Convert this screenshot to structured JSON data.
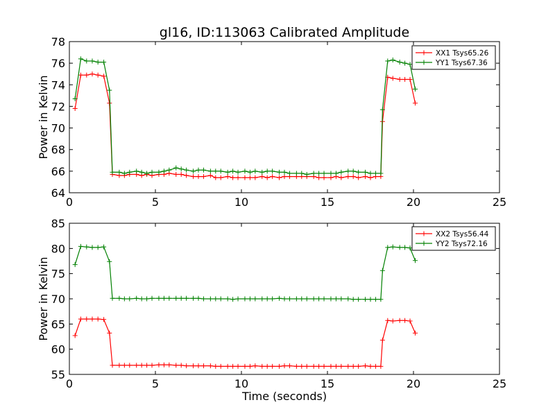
{
  "figure": {
    "title": "gl16, ID:113063 Calibrated Amplitude"
  },
  "chart_data": [
    {
      "type": "line",
      "title": "gl16, ID:113063 Calibrated Amplitude",
      "xlabel": "",
      "ylabel": "Power in Kelvin",
      "xlim": [
        0,
        25
      ],
      "ylim": [
        64,
        78
      ],
      "xticks": [
        "0",
        "5",
        "10",
        "15",
        "20",
        "25"
      ],
      "yticks": [
        "64",
        "66",
        "68",
        "70",
        "72",
        "74",
        "76",
        "78"
      ],
      "grid": false,
      "legend": "top-right",
      "marker": "+",
      "series": [
        {
          "name": "XX1 Tsys65.26",
          "color": "#ff0000",
          "x": [
            0.33,
            0.66,
            1.0,
            1.33,
            1.66,
            2.0,
            2.33,
            2.5,
            2.9,
            3.2,
            3.5,
            3.9,
            4.2,
            4.5,
            4.8,
            5.2,
            5.5,
            5.8,
            6.2,
            6.5,
            6.8,
            7.2,
            7.5,
            7.8,
            8.2,
            8.5,
            8.8,
            9.2,
            9.5,
            9.8,
            10.2,
            10.5,
            10.8,
            11.2,
            11.5,
            11.8,
            12.2,
            12.5,
            12.8,
            13.2,
            13.5,
            13.8,
            14.2,
            14.5,
            14.8,
            15.2,
            15.5,
            15.8,
            16.2,
            16.5,
            16.8,
            17.2,
            17.5,
            17.8,
            18.1,
            18.2,
            18.5,
            18.8,
            19.2,
            19.5,
            19.8,
            20.1
          ],
          "y": [
            71.8,
            74.9,
            74.9,
            75.0,
            74.9,
            74.8,
            72.3,
            65.7,
            65.6,
            65.6,
            65.7,
            65.7,
            65.6,
            65.7,
            65.6,
            65.7,
            65.7,
            65.8,
            65.7,
            65.7,
            65.6,
            65.5,
            65.5,
            65.5,
            65.6,
            65.4,
            65.4,
            65.5,
            65.4,
            65.4,
            65.4,
            65.4,
            65.4,
            65.5,
            65.4,
            65.5,
            65.4,
            65.5,
            65.5,
            65.5,
            65.5,
            65.5,
            65.5,
            65.4,
            65.4,
            65.4,
            65.5,
            65.4,
            65.5,
            65.5,
            65.4,
            65.5,
            65.4,
            65.5,
            65.5,
            70.6,
            74.7,
            74.6,
            74.5,
            74.5,
            74.5,
            72.3
          ]
        },
        {
          "name": "YY1 Tsys67.36",
          "color": "#008000",
          "x": [
            0.33,
            0.66,
            1.0,
            1.33,
            1.66,
            2.0,
            2.33,
            2.5,
            2.9,
            3.2,
            3.5,
            3.9,
            4.2,
            4.5,
            4.8,
            5.2,
            5.5,
            5.8,
            6.2,
            6.5,
            6.8,
            7.2,
            7.5,
            7.8,
            8.2,
            8.5,
            8.8,
            9.2,
            9.5,
            9.8,
            10.2,
            10.5,
            10.8,
            11.2,
            11.5,
            11.8,
            12.2,
            12.5,
            12.8,
            13.2,
            13.5,
            13.8,
            14.2,
            14.5,
            14.8,
            15.2,
            15.5,
            15.8,
            16.2,
            16.5,
            16.8,
            17.2,
            17.5,
            17.8,
            18.1,
            18.2,
            18.5,
            18.8,
            19.2,
            19.5,
            19.8,
            20.1
          ],
          "y": [
            72.7,
            76.4,
            76.2,
            76.2,
            76.1,
            76.1,
            73.5,
            65.9,
            65.9,
            65.8,
            65.9,
            66.0,
            65.9,
            65.8,
            65.9,
            65.9,
            66.0,
            66.1,
            66.3,
            66.2,
            66.1,
            66.0,
            66.1,
            66.1,
            66.0,
            66.0,
            66.0,
            65.9,
            66.0,
            65.9,
            66.0,
            65.9,
            66.0,
            65.9,
            66.0,
            66.0,
            65.9,
            65.9,
            65.8,
            65.8,
            65.8,
            65.7,
            65.8,
            65.8,
            65.8,
            65.8,
            65.8,
            65.9,
            66.0,
            66.0,
            65.9,
            65.9,
            65.8,
            65.8,
            65.8,
            71.7,
            76.2,
            76.3,
            76.1,
            76.0,
            75.9,
            73.6
          ]
        }
      ]
    },
    {
      "type": "line",
      "title": "",
      "xlabel": "Time (seconds)",
      "ylabel": "Power in Kelvin",
      "xlim": [
        0,
        25
      ],
      "ylim": [
        55,
        85
      ],
      "xticks": [
        "0",
        "5",
        "10",
        "15",
        "20",
        "25"
      ],
      "yticks": [
        "55",
        "60",
        "65",
        "70",
        "75",
        "80",
        "85"
      ],
      "grid": false,
      "legend": "top-right",
      "marker": "+",
      "series": [
        {
          "name": "XX2 Tsys56.44",
          "color": "#ff0000",
          "x": [
            0.33,
            0.66,
            1.0,
            1.33,
            1.66,
            2.0,
            2.33,
            2.5,
            2.9,
            3.2,
            3.5,
            3.9,
            4.2,
            4.5,
            4.8,
            5.2,
            5.5,
            5.8,
            6.2,
            6.5,
            6.8,
            7.2,
            7.5,
            7.8,
            8.2,
            8.5,
            8.8,
            9.2,
            9.5,
            9.8,
            10.2,
            10.5,
            10.8,
            11.2,
            11.5,
            11.8,
            12.2,
            12.5,
            12.8,
            13.2,
            13.5,
            13.8,
            14.2,
            14.5,
            14.8,
            15.2,
            15.5,
            15.8,
            16.2,
            16.5,
            16.8,
            17.2,
            17.5,
            17.8,
            18.1,
            18.2,
            18.5,
            18.8,
            19.2,
            19.5,
            19.8,
            20.1
          ],
          "y": [
            62.7,
            66.0,
            66.0,
            66.0,
            66.0,
            65.9,
            63.2,
            56.8,
            56.8,
            56.8,
            56.8,
            56.8,
            56.8,
            56.8,
            56.8,
            56.9,
            56.9,
            56.9,
            56.8,
            56.8,
            56.7,
            56.7,
            56.7,
            56.7,
            56.7,
            56.6,
            56.6,
            56.6,
            56.6,
            56.6,
            56.6,
            56.6,
            56.7,
            56.6,
            56.6,
            56.6,
            56.6,
            56.7,
            56.7,
            56.6,
            56.6,
            56.6,
            56.6,
            56.6,
            56.6,
            56.6,
            56.6,
            56.6,
            56.6,
            56.6,
            56.6,
            56.7,
            56.6,
            56.6,
            56.6,
            61.8,
            65.7,
            65.6,
            65.7,
            65.7,
            65.6,
            63.2
          ]
        },
        {
          "name": "YY2 Tsys72.16",
          "color": "#008000",
          "x": [
            0.33,
            0.66,
            1.0,
            1.33,
            1.66,
            2.0,
            2.33,
            2.5,
            2.9,
            3.2,
            3.5,
            3.9,
            4.2,
            4.5,
            4.8,
            5.2,
            5.5,
            5.8,
            6.2,
            6.5,
            6.8,
            7.2,
            7.5,
            7.8,
            8.2,
            8.5,
            8.8,
            9.2,
            9.5,
            9.8,
            10.2,
            10.5,
            10.8,
            11.2,
            11.5,
            11.8,
            12.2,
            12.5,
            12.8,
            13.2,
            13.5,
            13.8,
            14.2,
            14.5,
            14.8,
            15.2,
            15.5,
            15.8,
            16.2,
            16.5,
            16.8,
            17.2,
            17.5,
            17.8,
            18.1,
            18.2,
            18.5,
            18.8,
            19.2,
            19.5,
            19.8,
            20.1
          ],
          "y": [
            76.8,
            80.4,
            80.3,
            80.2,
            80.2,
            80.3,
            77.4,
            70.1,
            70.1,
            70.0,
            70.0,
            70.1,
            70.0,
            70.0,
            70.1,
            70.1,
            70.1,
            70.1,
            70.1,
            70.1,
            70.1,
            70.1,
            70.1,
            70.0,
            70.0,
            70.0,
            70.0,
            70.0,
            69.9,
            70.0,
            70.0,
            70.0,
            70.0,
            70.0,
            70.0,
            70.0,
            70.1,
            70.0,
            70.0,
            70.0,
            70.0,
            70.0,
            70.0,
            70.0,
            70.0,
            70.0,
            70.0,
            70.0,
            70.0,
            69.9,
            69.9,
            69.9,
            69.9,
            69.9,
            69.9,
            75.6,
            80.2,
            80.3,
            80.2,
            80.2,
            80.1,
            77.6
          ]
        }
      ]
    }
  ]
}
